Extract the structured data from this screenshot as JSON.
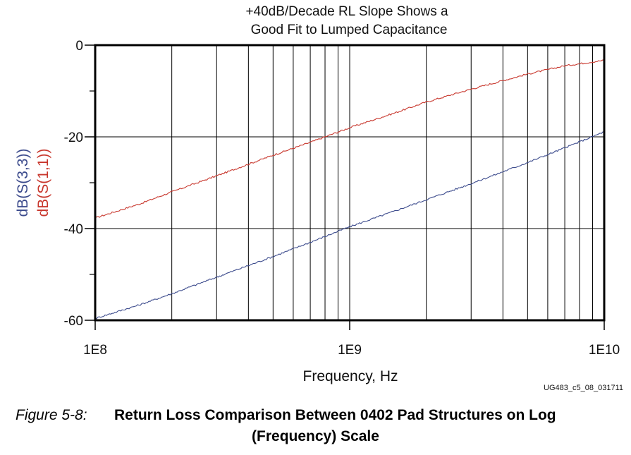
{
  "chart_data": {
    "type": "line",
    "title_lines": [
      "+40dB/Decade RL Slope Shows a",
      "Good Fit to Lumped Capacitance"
    ],
    "xlabel": "Frequency, Hz",
    "x_scale": "log",
    "xlim": [
      100000000,
      10000000000
    ],
    "x_ticks": [
      {
        "value": 100000000,
        "label": "1E8"
      },
      {
        "value": 1000000000,
        "label": "1E9"
      },
      {
        "value": 10000000000,
        "label": "1E10"
      }
    ],
    "ylim": [
      -60,
      0
    ],
    "y_ticks": [
      {
        "value": 0,
        "label": "0"
      },
      {
        "value": -20,
        "label": "-20"
      },
      {
        "value": -40,
        "label": "-40"
      },
      {
        "value": -60,
        "label": "-60"
      }
    ],
    "y_minor_ticks": [
      -10,
      -30,
      -50
    ],
    "grid": "vertical log-decade lines",
    "ylabels": [
      {
        "text": "dB(S(3,3))",
        "color": "#3b4a8c"
      },
      {
        "text": "dB(S(1,1))",
        "color": "#c8372d"
      }
    ],
    "series": [
      {
        "name": "dB(S(1,1))",
        "color": "#c8372d",
        "x": [
          100000000,
          150000000,
          200000000,
          300000000,
          500000000,
          700000000,
          1000000000,
          1500000000,
          2000000000,
          3000000000,
          5000000000,
          7000000000,
          10000000000
        ],
        "y": [
          -37.7,
          -34.6,
          -32.0,
          -28.5,
          -24.0,
          -21.2,
          -18.0,
          -14.8,
          -12.4,
          -9.6,
          -6.3,
          -4.5,
          -3.3
        ]
      },
      {
        "name": "dB(S(3,3))",
        "color": "#3b4a8c",
        "x": [
          100000000,
          150000000,
          200000000,
          300000000,
          500000000,
          700000000,
          1000000000,
          1500000000,
          2000000000,
          3000000000,
          5000000000,
          7000000000,
          10000000000
        ],
        "y": [
          -59.6,
          -56.6,
          -54.2,
          -50.6,
          -46.1,
          -43.0,
          -39.6,
          -36.2,
          -33.7,
          -30.2,
          -25.6,
          -22.4,
          -18.9
        ]
      }
    ]
  },
  "figure_id": "UG483_c5_08_031711",
  "caption": {
    "number": "Figure 5-8:",
    "text_line1": "Return Loss Comparison Between 0402 Pad Structures on Log",
    "text_line2": "(Frequency) Scale"
  }
}
